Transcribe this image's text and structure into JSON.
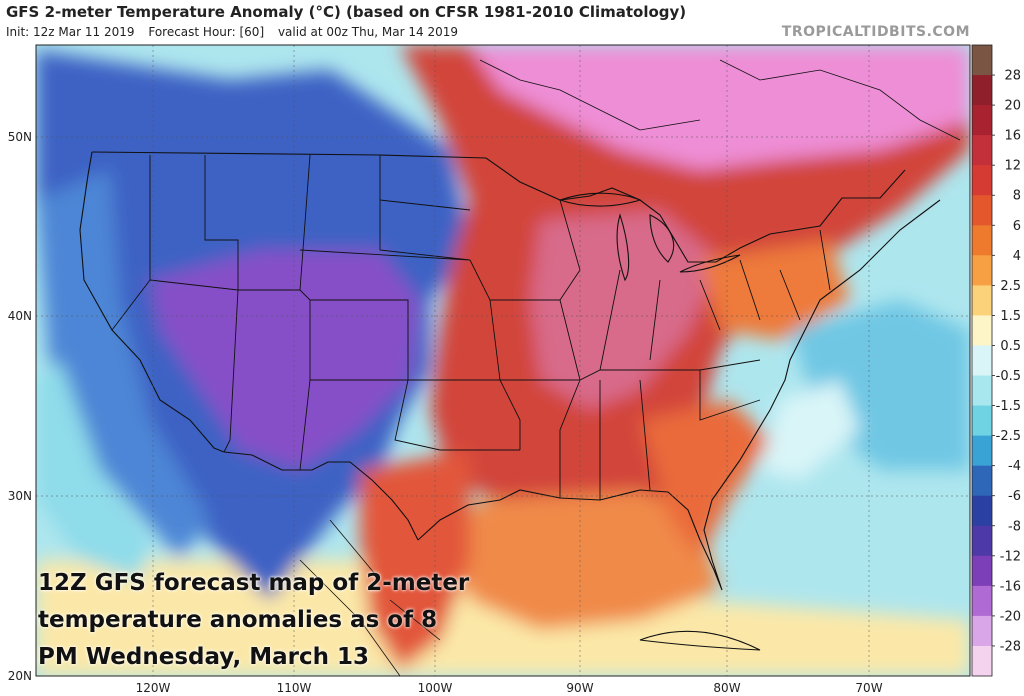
{
  "header": {
    "title": "GFS 2-meter Temperature Anomaly (°C) (based on CFSR 1981-2010 Climatology)",
    "init": "Init: 12z Mar 11 2019",
    "forecast_hour": "Forecast Hour: [60]",
    "valid": "valid at 00z Thu, Mar 14 2019",
    "site": "TROPICALTIDBITS.COM"
  },
  "caption": "12Z GFS forecast map of 2-meter temperature anomalies as of 8 PM Wednesday, March 13",
  "axes": {
    "lat_labels": [
      "50N",
      "40N",
      "30N",
      "20N"
    ],
    "lon_labels": [
      "120W",
      "110W",
      "100W",
      "90W",
      "80W",
      "70W"
    ]
  },
  "colorbar": {
    "labels": [
      "28",
      "20",
      "16",
      "12",
      "8",
      "6",
      "4",
      "2.5",
      "1.5",
      "0.5",
      "-0.5",
      "-1.5",
      "-2.5",
      "-4",
      "-6",
      "-8",
      "-12",
      "-16",
      "-20",
      "-28"
    ],
    "colors": [
      "#7a5544",
      "#8f1f2b",
      "#a8232f",
      "#c4303a",
      "#d63b33",
      "#e4562b",
      "#ee7a2e",
      "#f6a043",
      "#fbd27a",
      "#fdf4c8",
      "#d9f5f8",
      "#a9e7ef",
      "#6fd3e4",
      "#3aa3d6",
      "#2e66b8",
      "#2a40a3",
      "#4d3aa8",
      "#7c3fb8",
      "#b06ad3",
      "#d9a6e8",
      "#f3d3ee"
    ]
  },
  "map_regions": {
    "ocean_color": "#aee6ee",
    "warm_east_color": "#d2453a",
    "cold_west_color": "#3d62c4",
    "purple_core_color": "#8650c8",
    "pink_north_color": "#ee8ed6",
    "gulf_color": "#f08a4a",
    "warm_core_color": "#d86a8a"
  }
}
